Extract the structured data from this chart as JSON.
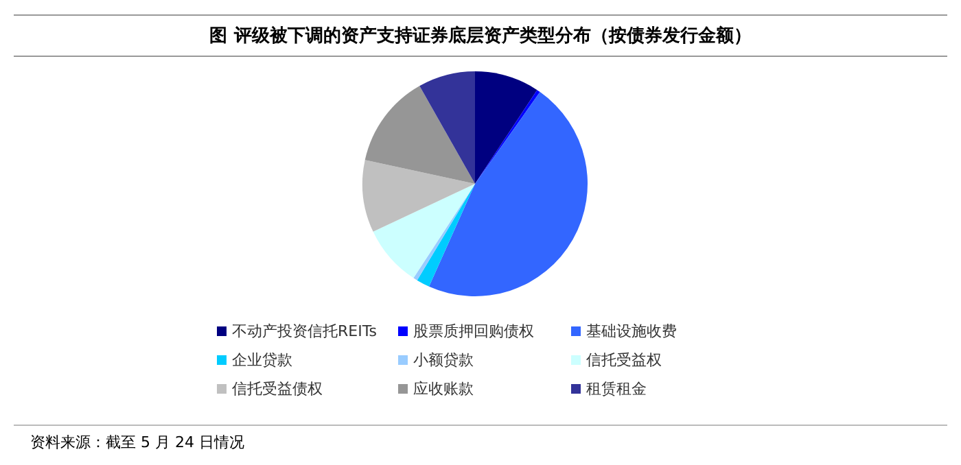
{
  "chart_data": {
    "type": "pie",
    "title": "图  评级被下调的资产支持证券底层资产类型分布（按债券发行金额）",
    "categories": [
      "不动产投资信托REITs",
      "股票质押回购债权",
      "基础设施收费",
      "企业贷款",
      "小额贷款",
      "信托受益权",
      "信托受益债权",
      "应收账款",
      "租赁租金"
    ],
    "values": [
      9.3,
      0.5,
      46.9,
      1.9,
      0.6,
      8.8,
      10.4,
      13.4,
      8.2
    ],
    "colors": [
      "#000080",
      "#0000ff",
      "#3366ff",
      "#00ccff",
      "#99ccff",
      "#ccffff",
      "#c0c0c0",
      "#969696",
      "#333399"
    ],
    "legend": "bottom",
    "annotations": [
      "资料来源：截至 5 月 24 日情况"
    ]
  }
}
